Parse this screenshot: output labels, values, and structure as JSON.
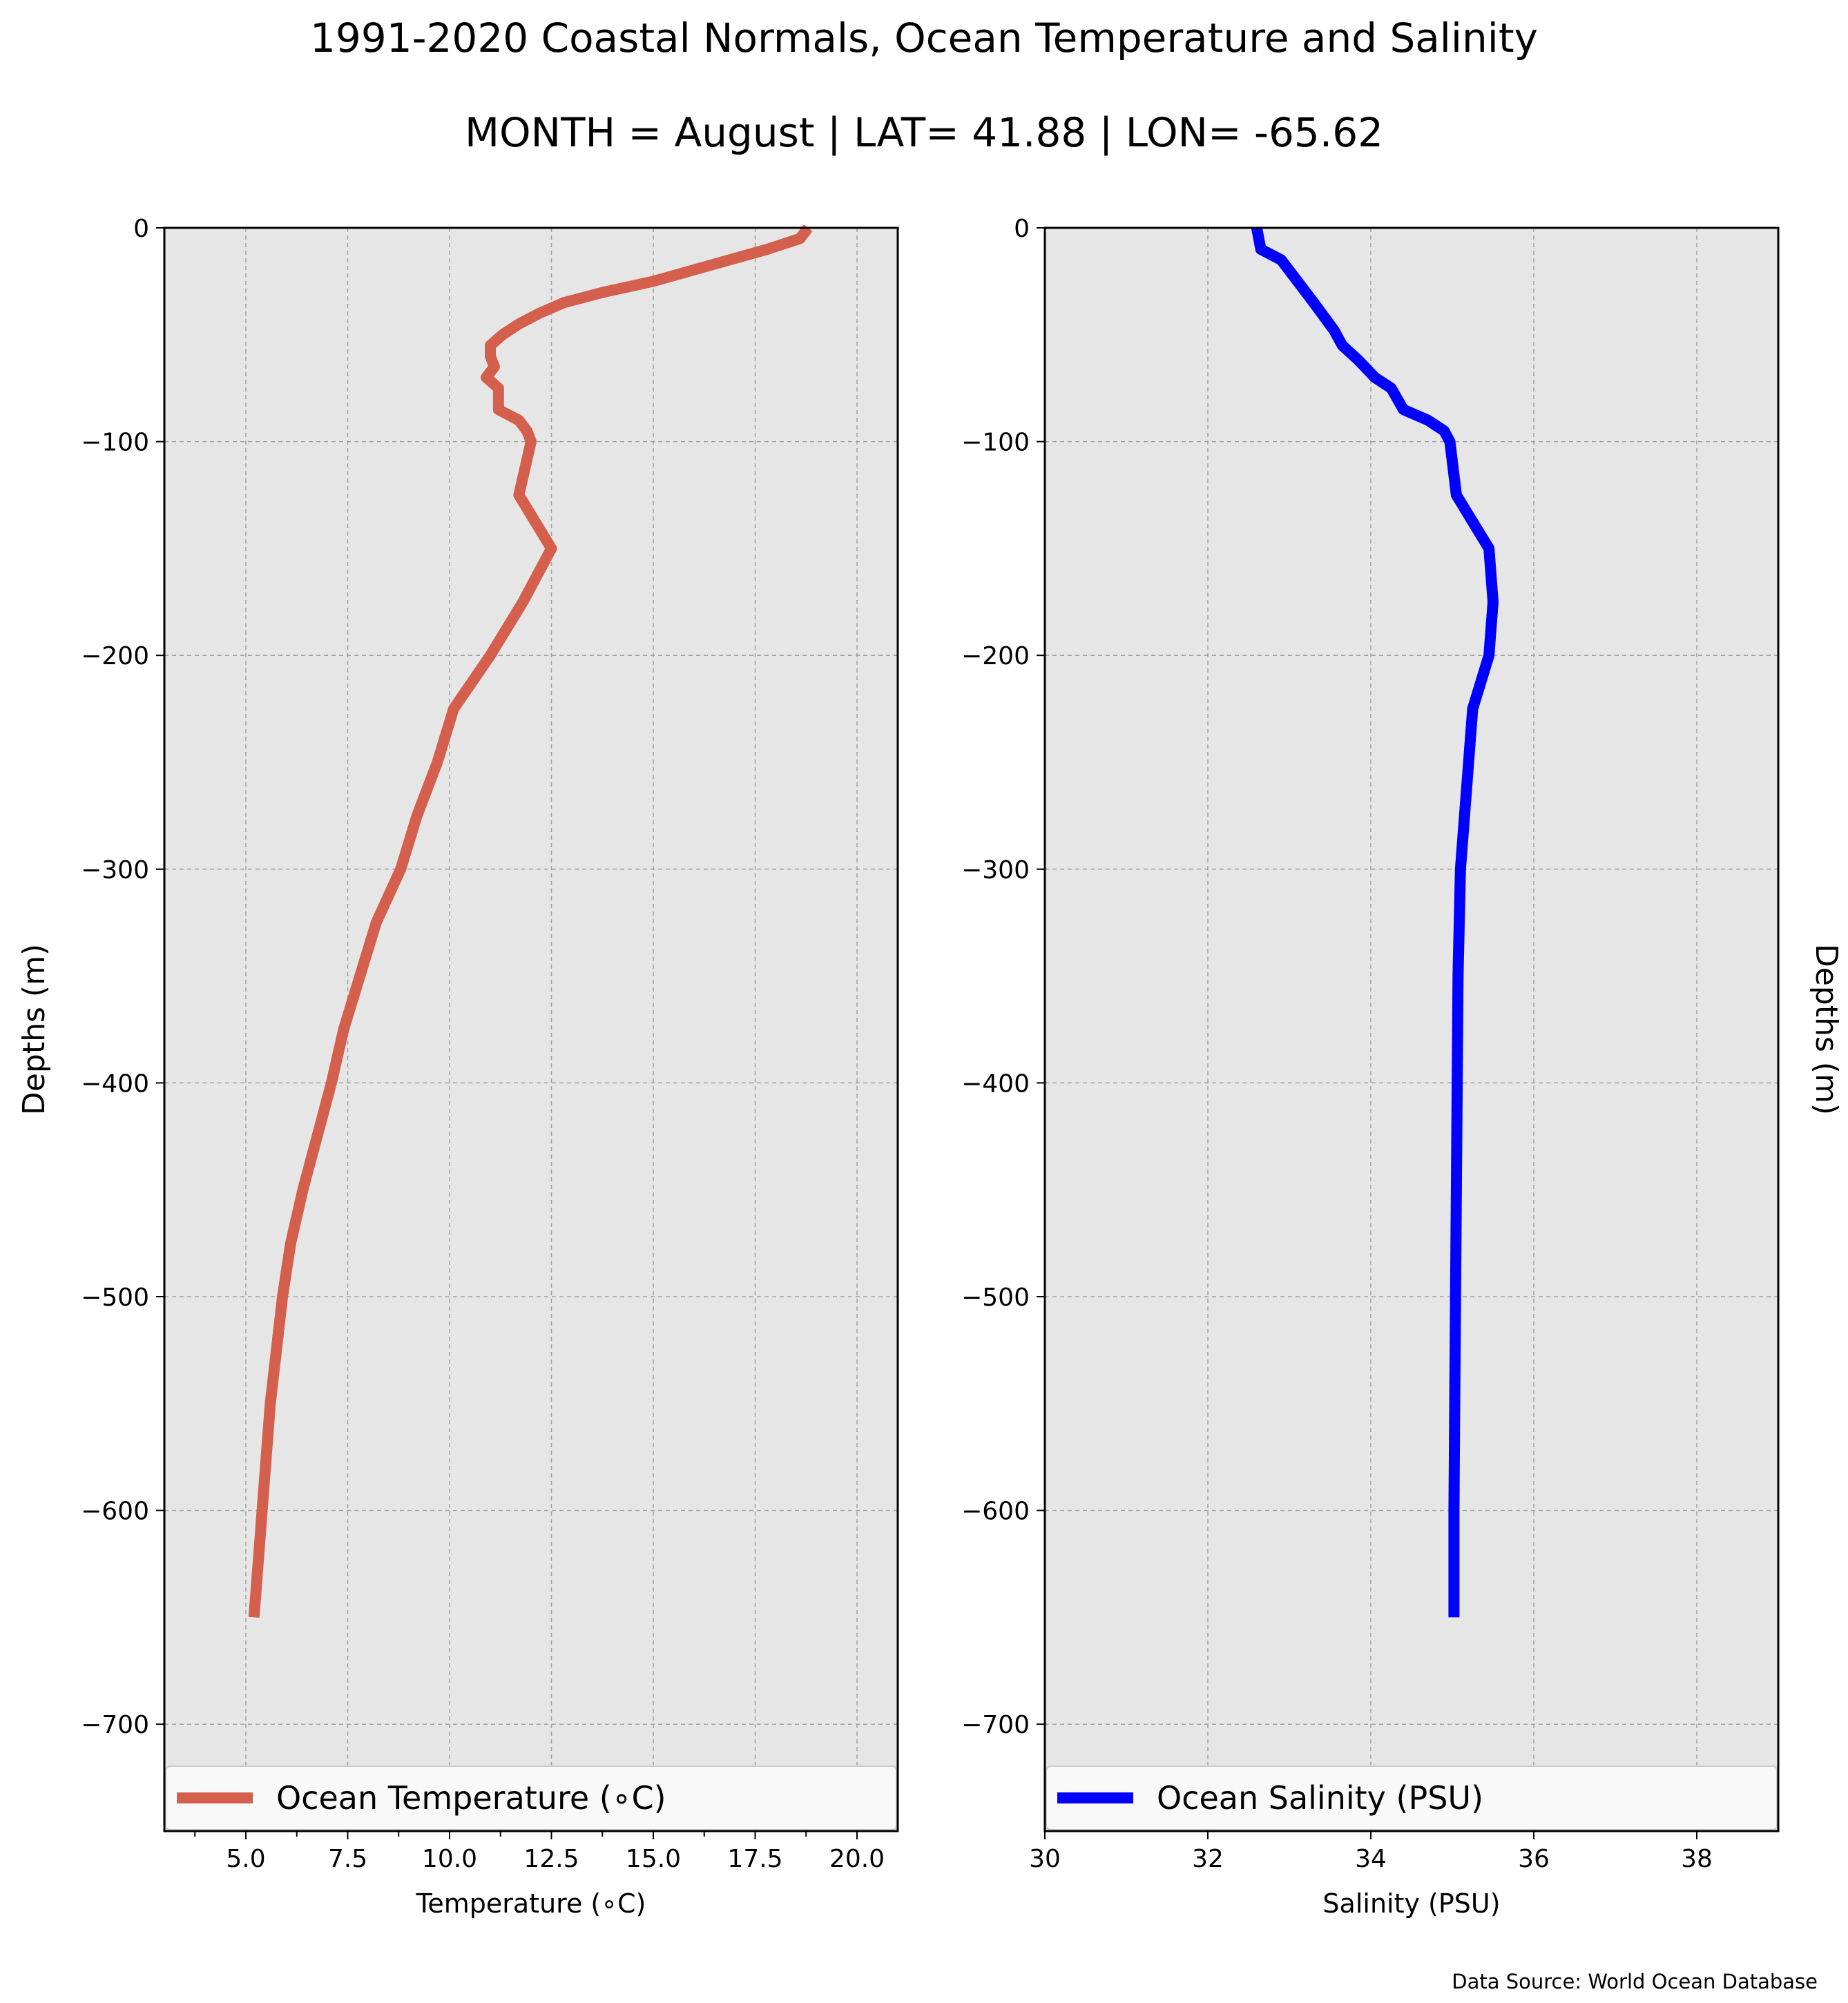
{
  "title": "1991-2020 Coastal Normals, Ocean Temperature and Salinity",
  "subtitle": "MONTH = August | LAT= 41.88 | LON= -65.62",
  "source": "Data Source: World Ocean Database",
  "colors": {
    "background_plot": "#e6e6e6",
    "temperature_line": "#d35f4c",
    "salinity_line": "#0000ff",
    "grid": "#a0a0a0"
  },
  "chart_data": [
    {
      "type": "line",
      "ylabel": "Depths (m)",
      "xlabel": "Temperature (∘C)",
      "xlim": [
        3,
        21
      ],
      "ylim": [
        -750,
        0
      ],
      "grid": true,
      "legend_placement": "bottom",
      "x_ticks": [
        5,
        7.5,
        10,
        12.5,
        15,
        17.5,
        20
      ],
      "x_tick_labels": [
        "5.0",
        "7.5",
        "10.0",
        "12.5",
        "15.0",
        "17.5",
        "20.0"
      ],
      "y_ticks": [
        0,
        -100,
        -200,
        -300,
        -400,
        -500,
        -600,
        -700
      ],
      "y_tick_labels": [
        "0",
        "−100",
        "−200",
        "−300",
        "−400",
        "−500",
        "−600",
        "−700"
      ],
      "series": [
        {
          "name": "Ocean Temperature (∘C)",
          "x": [
            18.8,
            18.6,
            17.8,
            15.0,
            13.8,
            12.8,
            12.2,
            11.7,
            11.3,
            11.0,
            11.0,
            11.1,
            10.9,
            11.2,
            11.2,
            11.7,
            11.9,
            12.0,
            11.7,
            12.5,
            11.8,
            11.0,
            10.1,
            9.7,
            9.2,
            8.8,
            8.2,
            7.4,
            7.1,
            6.4,
            6.1,
            5.9,
            5.6,
            5.4,
            5.2
          ],
          "y": [
            0,
            -5,
            -10,
            -25,
            -30,
            -35,
            -40,
            -45,
            -50,
            -55,
            -60,
            -65,
            -70,
            -75,
            -85,
            -90,
            -95,
            -100,
            -125,
            -150,
            -175,
            -200,
            -225,
            -250,
            -275,
            -300,
            -325,
            -375,
            -400,
            -450,
            -475,
            -500,
            -550,
            -600,
            -650
          ]
        }
      ]
    },
    {
      "type": "line",
      "ylabel": "Depths (m)",
      "xlabel": "Salinity (PSU)",
      "xlim": [
        30,
        39
      ],
      "ylim": [
        -750,
        0
      ],
      "grid": true,
      "legend_placement": "bottom",
      "x_ticks": [
        30,
        32,
        34,
        36,
        38
      ],
      "x_tick_labels": [
        "30",
        "32",
        "34",
        "36",
        "38"
      ],
      "y_ticks": [
        0,
        -100,
        -200,
        -300,
        -400,
        -500,
        -600,
        -700
      ],
      "y_tick_labels": [
        "0",
        "−100",
        "−200",
        "−300",
        "−400",
        "−500",
        "−600",
        "−700"
      ],
      "series": [
        {
          "name": "Ocean Salinity (PSU)",
          "x": [
            32.6,
            32.65,
            32.9,
            33.1,
            33.3,
            33.55,
            33.65,
            33.85,
            34.05,
            34.25,
            34.4,
            34.7,
            34.9,
            34.97,
            35.05,
            35.45,
            35.5,
            35.45,
            35.25,
            35.2,
            35.15,
            35.1,
            35.07,
            35.06,
            35.05,
            35.04,
            35.03,
            35.02,
            35.02
          ],
          "y": [
            0,
            -10,
            -15,
            -25,
            -35,
            -48,
            -55,
            -62,
            -70,
            -75,
            -85,
            -90,
            -95,
            -100,
            -125,
            -150,
            -175,
            -200,
            -225,
            -250,
            -275,
            -300,
            -350,
            -400,
            -450,
            -500,
            -550,
            -600,
            -650
          ]
        }
      ]
    }
  ]
}
